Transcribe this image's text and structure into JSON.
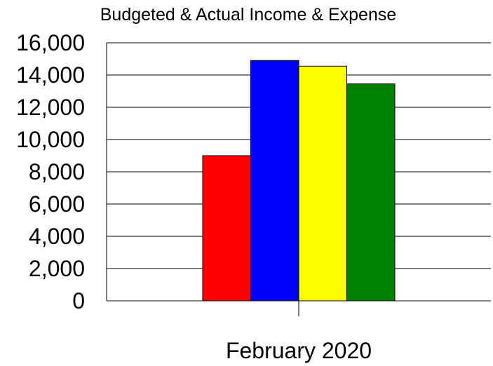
{
  "chart_data": {
    "type": "bar",
    "title": "Budgeted & Actual Income & Expense",
    "xlabel": "",
    "ylabel": "",
    "categories": [
      "February 2020"
    ],
    "series": [
      {
        "values": [
          9000
        ],
        "color": "#ff0000"
      },
      {
        "values": [
          14900
        ],
        "color": "#0000ff"
      },
      {
        "values": [
          14550
        ],
        "color": "#ffff00"
      },
      {
        "values": [
          13450
        ],
        "color": "#008000"
      }
    ],
    "ylim": [
      0,
      16000
    ],
    "yticks": [
      0,
      2000,
      4000,
      6000,
      8000,
      10000,
      12000,
      14000,
      16000
    ],
    "ytick_labels": [
      "0",
      "2,000",
      "4,000",
      "6,000",
      "8,000",
      "10,000",
      "12,000",
      "14,000",
      "16,000"
    ],
    "grid": true,
    "legend": "none"
  }
}
